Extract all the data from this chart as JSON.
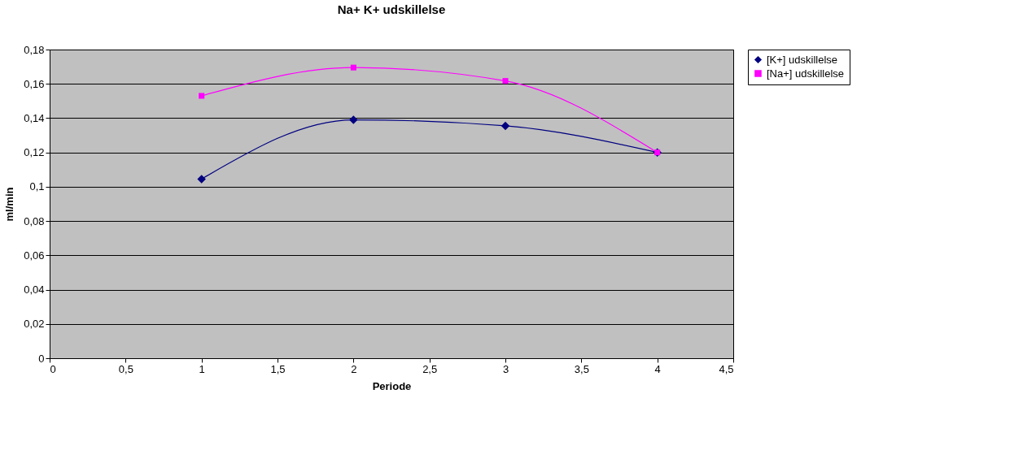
{
  "chart_data": {
    "type": "line",
    "title": "Na+ K+ udskillelse",
    "xlabel": "Periode",
    "ylabel": "ml/min",
    "x": [
      1,
      2,
      3,
      4
    ],
    "series": [
      {
        "name": "[K+] udskillelse",
        "color": "#000080",
        "marker": "diamond",
        "values": [
          0.1045,
          0.139,
          0.1355,
          0.12
        ]
      },
      {
        "name": "[Na+] udskillelse",
        "color": "#ff00ff",
        "marker": "square",
        "values": [
          0.153,
          0.1695,
          0.1617,
          0.12
        ]
      }
    ],
    "xlim": [
      0,
      4.5
    ],
    "xticks": [
      0,
      {
        "value": 0.5,
        "label": "0,5"
      },
      1,
      {
        "value": 1.5,
        "label": "1,5"
      },
      2,
      {
        "value": 2.5,
        "label": "2,5"
      },
      3,
      {
        "value": 3.5,
        "label": "3,5"
      },
      4,
      {
        "value": 4.5,
        "label": "4,5"
      }
    ],
    "ylim": [
      0,
      0.18
    ],
    "yticks": [
      0,
      {
        "value": 0.02,
        "label": "0,02"
      },
      {
        "value": 0.04,
        "label": "0,04"
      },
      {
        "value": 0.06,
        "label": "0,06"
      },
      {
        "value": 0.08,
        "label": "0,08"
      },
      {
        "value": 0.1,
        "label": "0,1"
      },
      {
        "value": 0.12,
        "label": "0,12"
      },
      {
        "value": 0.14,
        "label": "0,14"
      },
      {
        "value": 0.16,
        "label": "0,16"
      },
      {
        "value": 0.18,
        "label": "0,18"
      }
    ],
    "grid": "y",
    "legend": "right",
    "line_style": "solid"
  }
}
